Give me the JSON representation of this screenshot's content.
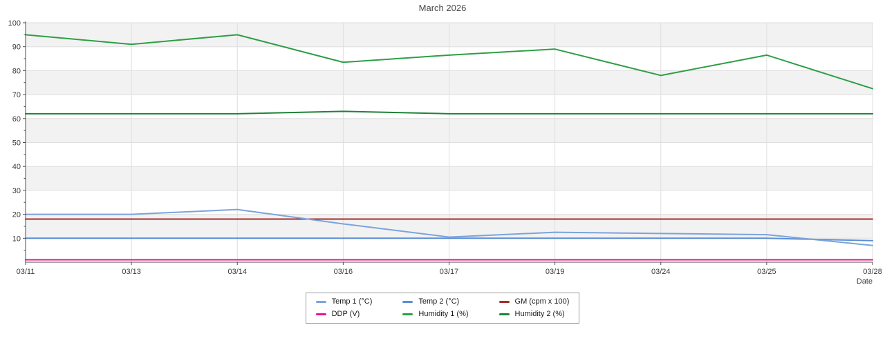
{
  "title": "March 2026",
  "axes": {
    "x_label": "Date",
    "x_ticks": [
      "03/11",
      "03/13",
      "03/14",
      "03/16",
      "03/17",
      "03/19",
      "03/24",
      "03/25",
      "03/28"
    ],
    "y_ticks": [
      10,
      20,
      30,
      40,
      50,
      60,
      70,
      80,
      90,
      100
    ],
    "y_range": [
      0,
      100
    ]
  },
  "chart_data": {
    "type": "line",
    "title": "March 2026",
    "xlabel": "Date",
    "ylabel": "",
    "ylim": [
      0,
      100
    ],
    "grid": true,
    "legend_position": "bottom",
    "band_fill": "#f2f2f2",
    "gridline_color": "#dedede",
    "spine_color": "#4d4d4d",
    "tick_label_color": "#3a3a3a",
    "title_color": "#4a4a4a",
    "categories": [
      "03/11",
      "03/13",
      "03/14",
      "03/16",
      "03/17",
      "03/19",
      "03/24",
      "03/25",
      "03/28"
    ],
    "series": [
      {
        "name": "Temp 1 (°C)",
        "color": "#7aa3dc",
        "values": [
          20,
          20,
          22,
          16,
          10.5,
          12.5,
          12,
          11.5,
          7
        ]
      },
      {
        "name": "Temp 2 (°C)",
        "color": "#5a8ed5",
        "values": [
          10,
          10,
          10,
          10,
          10,
          10,
          10,
          10,
          9
        ]
      },
      {
        "name": "GM (cpm x 100)",
        "color": "#a32c25",
        "values": [
          18,
          18,
          18,
          18,
          18,
          18,
          18,
          18,
          18
        ]
      },
      {
        "name": "DDP (V)",
        "color": "#e8148c",
        "values": [
          1,
          1,
          1,
          1,
          1,
          1,
          1,
          1,
          1
        ]
      },
      {
        "name": "Humidity 1 (%)",
        "color": "#2d9e45",
        "values": [
          95,
          91,
          95,
          83.5,
          86.5,
          89,
          78,
          86.5,
          72.5
        ]
      },
      {
        "name": "Humidity 2 (%)",
        "color": "#1d8236",
        "values": [
          62,
          62,
          62,
          63,
          62,
          62,
          62,
          62,
          62
        ]
      }
    ]
  }
}
